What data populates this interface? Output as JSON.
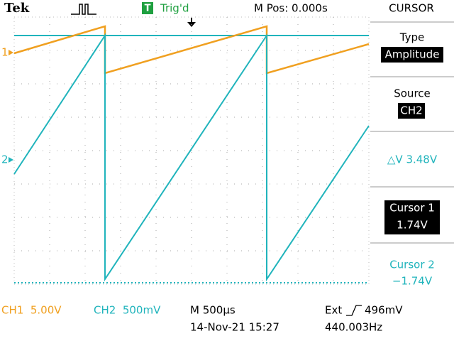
{
  "header": {
    "brand": "Tek",
    "trigger_icon": "T",
    "trigger_status": "Trig'd",
    "position": "M Pos: 0.000s"
  },
  "menu": {
    "title": "CURSOR",
    "type_label": "Type",
    "type_value": "Amplitude",
    "source_label": "Source",
    "source_value": "CH2",
    "delta": "△V 3.48V",
    "cursor1_label": "Cursor 1",
    "cursor1_value": "1.74V",
    "cursor2_label": "Cursor 2",
    "cursor2_value": "−1.74V"
  },
  "markers": {
    "ch1": "1",
    "ch2": "2"
  },
  "footer": {
    "ch1": "CH1  5.00V",
    "ch2": "CH2  500mV",
    "timebase": "M 500µs",
    "date": "14-Nov-21 15:27",
    "trigger_source": "Ext",
    "trigger_level": "496mV",
    "frequency": "440.003Hz"
  }
}
